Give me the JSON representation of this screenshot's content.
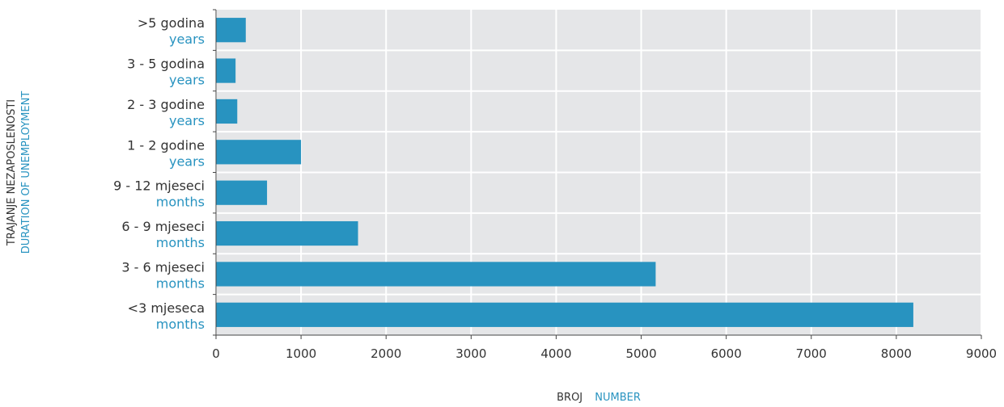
{
  "chart_data": {
    "type": "bar",
    "orientation": "horizontal",
    "categories": [
      {
        "label": ">5 godina",
        "sublabel": "years"
      },
      {
        "label": "3 - 5 godina",
        "sublabel": "years"
      },
      {
        "label": "2 - 3 godine",
        "sublabel": "years"
      },
      {
        "label": "1 - 2 godine",
        "sublabel": "years"
      },
      {
        "label": "9 - 12 mjeseci",
        "sublabel": "months"
      },
      {
        "label": "6 - 9 mjeseci",
        "sublabel": "months"
      },
      {
        "label": "3 - 6 mjeseci",
        "sublabel": "months"
      },
      {
        "label": "<3 mjeseca",
        "sublabel": "months"
      }
    ],
    "values": [
      350,
      230,
      250,
      1000,
      600,
      1670,
      5170,
      8200
    ],
    "xlim": [
      0,
      9000
    ],
    "xticks": [
      "0",
      "1000",
      "2000",
      "3000",
      "4000",
      "5000",
      "6000",
      "7000",
      "8000",
      "9000"
    ],
    "xlabel": {
      "main": "BROJ",
      "sub": "NUMBER"
    },
    "ylabel": {
      "main": "TRAJANJE NEZAPOSLENOSTI",
      "sub": "DURATION OF UNEMPLOYMENT"
    },
    "grid": true,
    "colors": {
      "bar": "#2893c0",
      "plot_bg": "#e5e6e8",
      "grid": "#ffffff",
      "sublabel": "#2893c0",
      "text": "#333333",
      "axis": "#444444"
    }
  }
}
